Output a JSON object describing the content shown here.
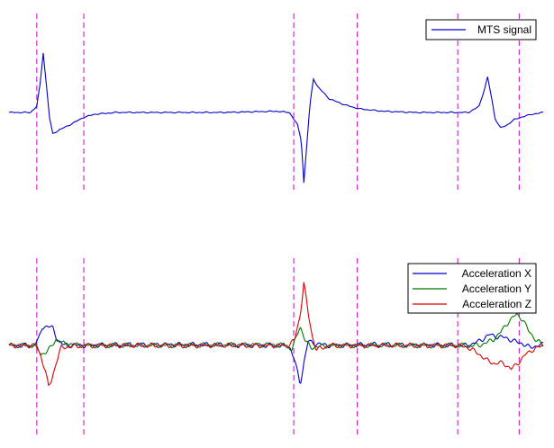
{
  "colors": {
    "background": "#ffffff",
    "marker": "#cc00cc",
    "mts": "#0000cc",
    "accel_x": "#0000cc",
    "accel_y": "#007700",
    "accel_z": "#dd0000",
    "legend_border": "#000000"
  },
  "chart_data": [
    {
      "type": "line",
      "title": "",
      "xlabel": "",
      "ylabel": "",
      "xlim": [
        0,
        1000
      ],
      "ylim": [
        -1.2,
        1.2
      ],
      "grid": false,
      "axes_visible": false,
      "legend": {
        "placement": "top-right",
        "entries": [
          "MTS signal"
        ]
      },
      "event_markers_x": [
        52,
        140,
        533,
        652,
        840,
        955
      ],
      "series": [
        {
          "name": "MTS signal",
          "color": "#0000cc",
          "points": [
            [
              0,
              0.0
            ],
            [
              40,
              0.0
            ],
            [
              52,
              0.1
            ],
            [
              58,
              0.45
            ],
            [
              64,
              0.98
            ],
            [
              70,
              0.45
            ],
            [
              76,
              -0.1
            ],
            [
              82,
              -0.35
            ],
            [
              95,
              -0.28
            ],
            [
              110,
              -0.22
            ],
            [
              140,
              -0.08
            ],
            [
              160,
              -0.03
            ],
            [
              200,
              0.0
            ],
            [
              300,
              0.0
            ],
            [
              400,
              0.0
            ],
            [
              500,
              0.02
            ],
            [
              525,
              0.0
            ],
            [
              540,
              -0.2
            ],
            [
              547,
              -0.45
            ],
            [
              552,
              -1.15
            ],
            [
              556,
              -0.7
            ],
            [
              563,
              0.1
            ],
            [
              570,
              0.55
            ],
            [
              578,
              0.42
            ],
            [
              600,
              0.22
            ],
            [
              630,
              0.12
            ],
            [
              655,
              0.06
            ],
            [
              700,
              0.02
            ],
            [
              760,
              0.0
            ],
            [
              830,
              0.0
            ],
            [
              860,
              0.0
            ],
            [
              880,
              0.1
            ],
            [
              890,
              0.38
            ],
            [
              896,
              0.58
            ],
            [
              902,
              0.3
            ],
            [
              910,
              -0.1
            ],
            [
              920,
              -0.25
            ],
            [
              930,
              -0.22
            ],
            [
              945,
              -0.12
            ],
            [
              965,
              -0.06
            ],
            [
              985,
              -0.02
            ],
            [
              1000,
              0.0
            ]
          ]
        }
      ]
    },
    {
      "type": "line",
      "title": "",
      "xlabel": "",
      "ylabel": "",
      "xlim": [
        0,
        1000
      ],
      "ylim": [
        -1.2,
        1.2
      ],
      "grid": false,
      "axes_visible": false,
      "legend": {
        "placement": "top-right",
        "entries": [
          "Acceleration X",
          "Acceleration Y",
          "Acceleration Z"
        ]
      },
      "event_markers_x": [
        52,
        140,
        533,
        652,
        840,
        955
      ],
      "series": [
        {
          "name": "Acceleration X",
          "color": "#0000cc",
          "points": [
            [
              0,
              0.0
            ],
            [
              45,
              0.0
            ],
            [
              55,
              0.12
            ],
            [
              62,
              0.42
            ],
            [
              72,
              0.45
            ],
            [
              82,
              0.4
            ],
            [
              90,
              0.15
            ],
            [
              100,
              0.02
            ],
            [
              140,
              0.0
            ],
            [
              300,
              0.02
            ],
            [
              500,
              0.0
            ],
            [
              525,
              -0.02
            ],
            [
              535,
              -0.35
            ],
            [
              545,
              -0.9
            ],
            [
              552,
              -0.4
            ],
            [
              560,
              0.1
            ],
            [
              570,
              0.05
            ],
            [
              600,
              0.0
            ],
            [
              700,
              0.02
            ],
            [
              840,
              0.0
            ],
            [
              860,
              0.0
            ],
            [
              880,
              0.1
            ],
            [
              900,
              0.25
            ],
            [
              915,
              0.2
            ],
            [
              930,
              0.18
            ],
            [
              945,
              0.1
            ],
            [
              960,
              0.05
            ],
            [
              975,
              -0.05
            ],
            [
              990,
              0.0
            ],
            [
              1000,
              0.02
            ]
          ]
        },
        {
          "name": "Acceleration Y",
          "color": "#007700",
          "points": [
            [
              0,
              0.0
            ],
            [
              50,
              0.0
            ],
            [
              60,
              -0.2
            ],
            [
              70,
              -0.15
            ],
            [
              78,
              -0.05
            ],
            [
              88,
              0.15
            ],
            [
              100,
              0.05
            ],
            [
              140,
              0.0
            ],
            [
              300,
              0.0
            ],
            [
              480,
              0.02
            ],
            [
              520,
              0.0
            ],
            [
              530,
              -0.1
            ],
            [
              538,
              0.2
            ],
            [
              545,
              0.45
            ],
            [
              555,
              0.1
            ],
            [
              565,
              -0.05
            ],
            [
              600,
              0.0
            ],
            [
              700,
              0.0
            ],
            [
              840,
              0.0
            ],
            [
              880,
              0.0
            ],
            [
              905,
              0.12
            ],
            [
              920,
              0.3
            ],
            [
              935,
              0.55
            ],
            [
              950,
              0.72
            ],
            [
              962,
              0.6
            ],
            [
              972,
              0.35
            ],
            [
              985,
              0.15
            ],
            [
              1000,
              0.0
            ]
          ]
        },
        {
          "name": "Acceleration Z",
          "color": "#dd0000",
          "points": [
            [
              0,
              0.0
            ],
            [
              50,
              0.0
            ],
            [
              60,
              -0.25
            ],
            [
              68,
              -0.6
            ],
            [
              74,
              -0.95
            ],
            [
              80,
              -0.8
            ],
            [
              88,
              -0.4
            ],
            [
              98,
              -0.05
            ],
            [
              140,
              0.0
            ],
            [
              300,
              0.0
            ],
            [
              500,
              0.0
            ],
            [
              525,
              0.0
            ],
            [
              535,
              0.15
            ],
            [
              545,
              0.7
            ],
            [
              552,
              1.45
            ],
            [
              560,
              0.75
            ],
            [
              568,
              0.2
            ],
            [
              575,
              -0.1
            ],
            [
              600,
              0.0
            ],
            [
              700,
              0.0
            ],
            [
              840,
              0.0
            ],
            [
              860,
              -0.05
            ],
            [
              880,
              -0.2
            ],
            [
              895,
              -0.35
            ],
            [
              910,
              -0.42
            ],
            [
              925,
              -0.4
            ],
            [
              940,
              -0.55
            ],
            [
              955,
              -0.38
            ],
            [
              968,
              -0.2
            ],
            [
              980,
              -0.1
            ],
            [
              1000,
              0.0
            ]
          ]
        }
      ]
    }
  ]
}
